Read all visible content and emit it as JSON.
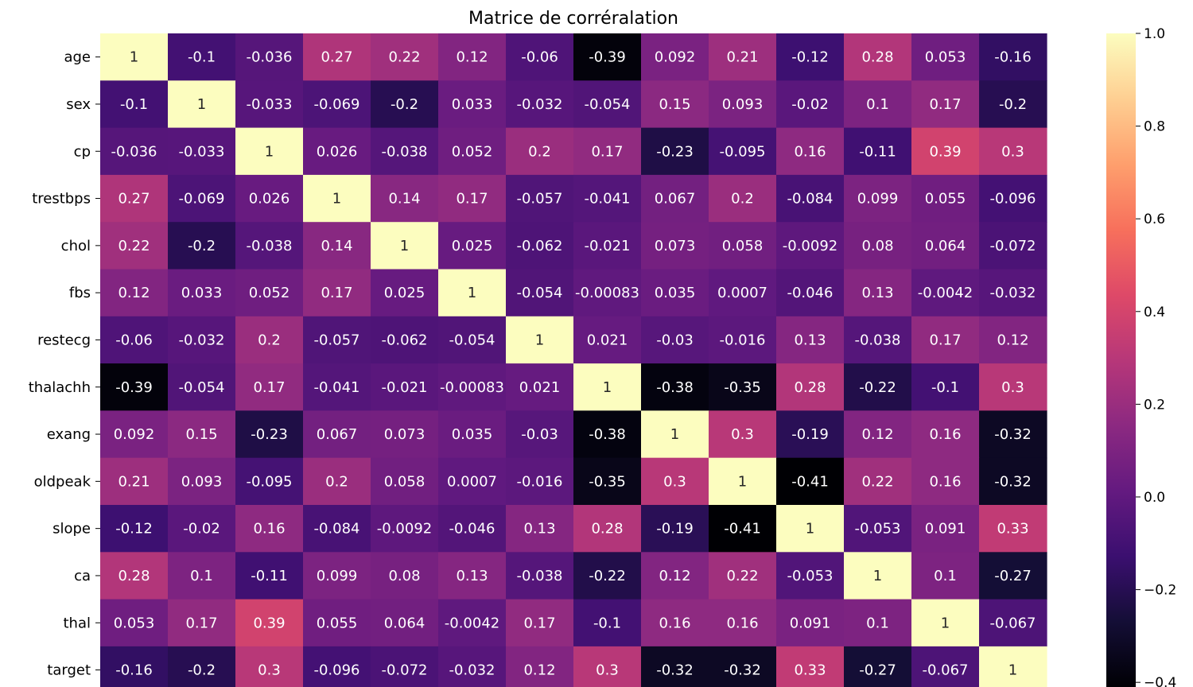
{
  "chart_data": {
    "type": "heatmap",
    "title": "Matrice de corréralation",
    "rows": [
      "age",
      "sex",
      "cp",
      "trestbps",
      "chol",
      "fbs",
      "restecg",
      "thalachh",
      "exang",
      "oldpeak",
      "slope",
      "ca",
      "thal",
      "target"
    ],
    "values": [
      [
        "1",
        "-0.1",
        "-0.036",
        "0.27",
        "0.22",
        "0.12",
        "-0.06",
        "-0.39",
        "0.092",
        "0.21",
        "-0.12",
        "0.28",
        "0.053",
        "-0.16"
      ],
      [
        "-0.1",
        "1",
        "-0.033",
        "-0.069",
        "-0.2",
        "0.033",
        "-0.032",
        "-0.054",
        "0.15",
        "0.093",
        "-0.02",
        "0.1",
        "0.17",
        "-0.2"
      ],
      [
        "-0.036",
        "-0.033",
        "1",
        "0.026",
        "-0.038",
        "0.052",
        "0.2",
        "0.17",
        "-0.23",
        "-0.095",
        "0.16",
        "-0.11",
        "0.39",
        "0.3"
      ],
      [
        "0.27",
        "-0.069",
        "0.026",
        "1",
        "0.14",
        "0.17",
        "-0.057",
        "-0.041",
        "0.067",
        "0.2",
        "-0.084",
        "0.099",
        "0.055",
        "-0.096"
      ],
      [
        "0.22",
        "-0.2",
        "-0.038",
        "0.14",
        "1",
        "0.025",
        "-0.062",
        "-0.021",
        "0.073",
        "0.058",
        "-0.0092",
        "0.08",
        "0.064",
        "-0.072"
      ],
      [
        "0.12",
        "0.033",
        "0.052",
        "0.17",
        "0.025",
        "1",
        "-0.054",
        "-0.00083",
        "0.035",
        "0.0007",
        "-0.046",
        "0.13",
        "-0.0042",
        "-0.032"
      ],
      [
        "-0.06",
        "-0.032",
        "0.2",
        "-0.057",
        "-0.062",
        "-0.054",
        "1",
        "0.021",
        "-0.03",
        "-0.016",
        "0.13",
        "-0.038",
        "0.17",
        "0.12"
      ],
      [
        "-0.39",
        "-0.054",
        "0.17",
        "-0.041",
        "-0.021",
        "-0.00083",
        "0.021",
        "1",
        "-0.38",
        "-0.35",
        "0.28",
        "-0.22",
        "-0.1",
        "0.3"
      ],
      [
        "0.092",
        "0.15",
        "-0.23",
        "0.067",
        "0.073",
        "0.035",
        "-0.03",
        "-0.38",
        "1",
        "0.3",
        "-0.19",
        "0.12",
        "0.16",
        "-0.32"
      ],
      [
        "0.21",
        "0.093",
        "-0.095",
        "0.2",
        "0.058",
        "0.0007",
        "-0.016",
        "-0.35",
        "0.3",
        "1",
        "-0.41",
        "0.22",
        "0.16",
        "-0.32"
      ],
      [
        "-0.12",
        "-0.02",
        "0.16",
        "-0.084",
        "-0.0092",
        "-0.046",
        "0.13",
        "0.28",
        "-0.19",
        "-0.41",
        "1",
        "-0.053",
        "0.091",
        "0.33"
      ],
      [
        "0.28",
        "0.1",
        "-0.11",
        "0.099",
        "0.08",
        "0.13",
        "-0.038",
        "-0.22",
        "0.12",
        "0.22",
        "-0.053",
        "1",
        "0.1",
        "-0.27"
      ],
      [
        "0.053",
        "0.17",
        "0.39",
        "0.055",
        "0.064",
        "-0.0042",
        "0.17",
        "-0.1",
        "0.16",
        "0.16",
        "0.091",
        "0.1",
        "1",
        "-0.067"
      ],
      [
        "-0.16",
        "-0.2",
        "0.3",
        "-0.096",
        "-0.072",
        "-0.032",
        "0.12",
        "0.3",
        "-0.32",
        "-0.32",
        "0.33",
        "-0.27",
        "-0.067",
        "1"
      ]
    ],
    "colorbar": {
      "min": -0.41,
      "max": 1.0,
      "ticks": [
        "1.0",
        "0.8",
        "0.6",
        "0.4",
        "0.2",
        "0.0",
        "−0.2",
        "−0.4"
      ]
    },
    "colormap": "magma",
    "colormap_stops": [
      "#000004",
      "#140e36",
      "#3b0f70",
      "#641a80",
      "#8c2981",
      "#b73779",
      "#de4968",
      "#f7705c",
      "#fe9f6d",
      "#fecf92",
      "#fcfdbf"
    ]
  }
}
